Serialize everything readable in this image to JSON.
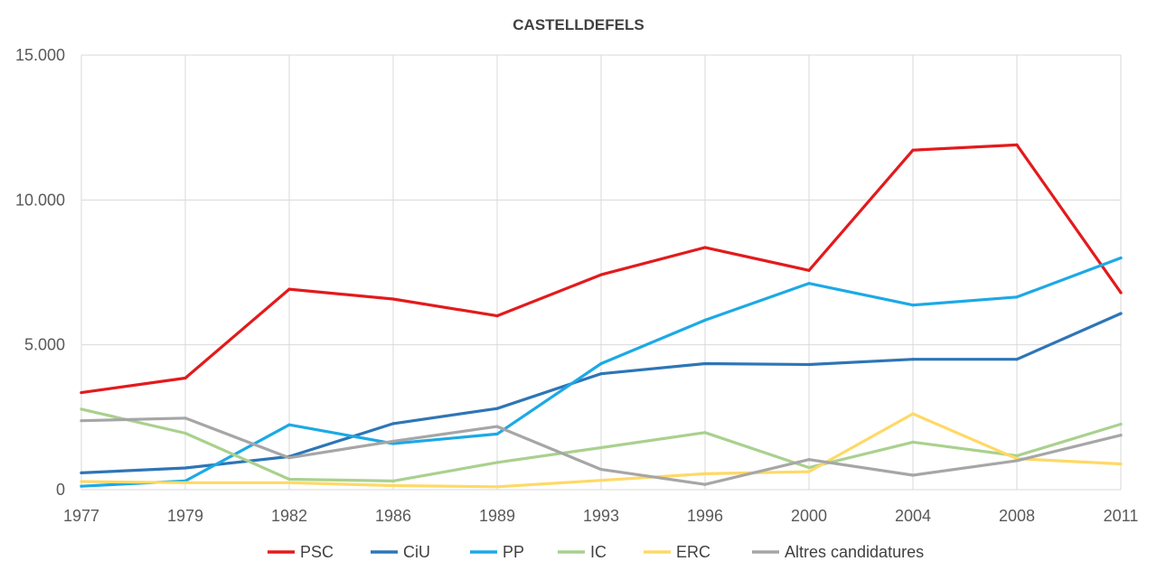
{
  "chart_data": {
    "type": "line",
    "title": "CASTELLDEFELS",
    "xlabel": "",
    "ylabel": "",
    "categories": [
      "1977",
      "1979",
      "1982",
      "1986",
      "1989",
      "1993",
      "1996",
      "2000",
      "2004",
      "2008",
      "2011"
    ],
    "ylim": [
      0,
      15000
    ],
    "yticks": [
      0,
      5000,
      10000,
      15000
    ],
    "ytick_labels": [
      "0",
      "5.000",
      "10.000",
      "15.000"
    ],
    "grid": true,
    "legend_position": "bottom",
    "series": [
      {
        "name": "PSC",
        "color": "#e31a1c",
        "values": [
          3350,
          3850,
          6920,
          6580,
          6000,
          7420,
          8360,
          7570,
          11720,
          11900,
          6800
        ]
      },
      {
        "name": "CiU",
        "color": "#2e75b6",
        "values": [
          580,
          750,
          1140,
          2280,
          2800,
          4000,
          4350,
          4320,
          4500,
          4500,
          6080
        ]
      },
      {
        "name": "PP",
        "color": "#1ca9e6",
        "values": [
          120,
          300,
          2240,
          1590,
          1920,
          4350,
          5850,
          7120,
          6370,
          6650,
          8000
        ]
      },
      {
        "name": "IC",
        "color": "#a9d18e",
        "values": [
          2780,
          1950,
          360,
          300,
          940,
          1450,
          1970,
          760,
          1640,
          1170,
          2260
        ]
      },
      {
        "name": "ERC",
        "color": "#ffd966",
        "values": [
          280,
          240,
          240,
          140,
          100,
          320,
          550,
          620,
          2620,
          1070,
          890
        ]
      },
      {
        "name": "Altres candidatures",
        "color": "#a6a6a6",
        "values": [
          2380,
          2470,
          1100,
          1670,
          2180,
          700,
          180,
          1040,
          500,
          1000,
          1880
        ]
      }
    ]
  }
}
